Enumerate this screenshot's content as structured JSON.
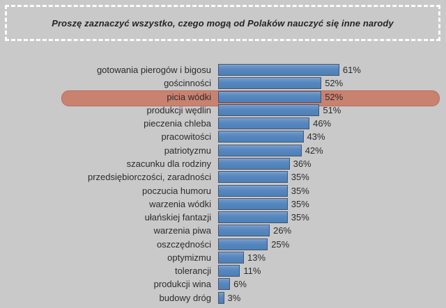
{
  "title": "Proszę zaznaczyć wszystko, czego mogą od Polaków nauczyć się inne narody",
  "chart_data": {
    "type": "bar",
    "orientation": "horizontal",
    "title": "Proszę zaznaczyć wszystko, czego mogą od Polaków nauczyć się inne narody",
    "categories": [
      "gotowania pierogów i bigosu",
      "gościnności",
      "picia wódki",
      "produkcji wędlin",
      "pieczenia chleba",
      "pracowitości",
      "patriotyzmu",
      "szacunku dla rodziny",
      "przedsiębiorczości, zaradności",
      "poczucia humoru",
      "warzenia wódki",
      "ułańskiej fantazji",
      "warzenia piwa",
      "oszczędności",
      "optymizmu",
      "tolerancji",
      "produkcji wina",
      "budowy dróg"
    ],
    "values": [
      61,
      52,
      52,
      51,
      46,
      43,
      42,
      36,
      35,
      35,
      35,
      35,
      26,
      25,
      13,
      11,
      6,
      3
    ],
    "value_suffix": "%",
    "xlabel": "",
    "ylabel": "",
    "xlim": [
      0,
      100
    ],
    "grid": false,
    "legend": false,
    "data_labels": true,
    "highlight": {
      "index": 2,
      "category": "picia wódki",
      "color": "#c98270"
    },
    "colors": {
      "background": "#c9c9c9",
      "bar": "#5687c0",
      "bar_border": "#46536a",
      "text": "#2b2b2b",
      "title_border": "#fcfcfc"
    }
  }
}
